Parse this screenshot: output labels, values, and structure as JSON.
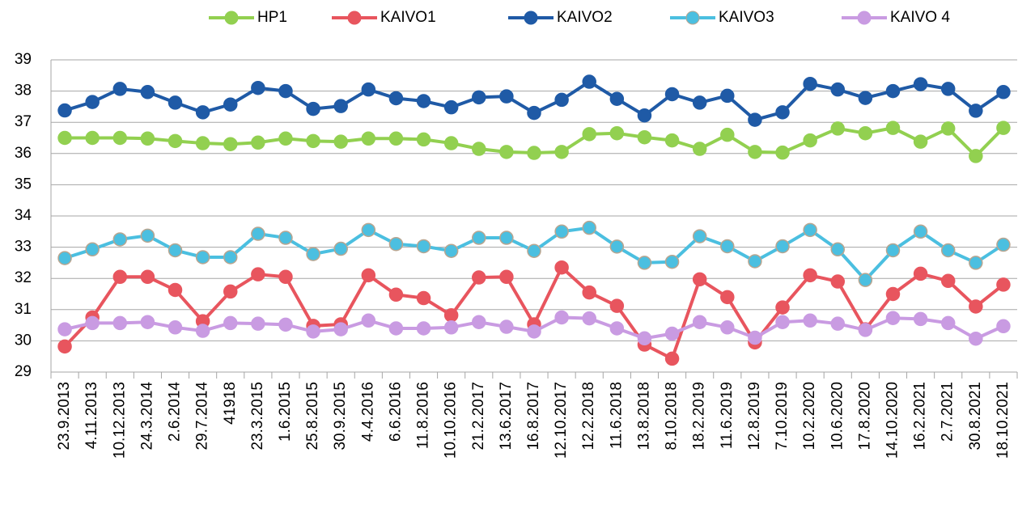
{
  "chart_data": {
    "type": "line",
    "categories": [
      "23.9.2013",
      "4.11.2013",
      "10.12.2013",
      "24.3.2014",
      "2.6.2014",
      "29.7.2014",
      "41918",
      "23.3.2015",
      "1.6.2015",
      "25.8.2015",
      "30.9.2015",
      "4.4.2016",
      "6.6.2016",
      "11.8.2016",
      "10.10.2016",
      "21.2.2017",
      "13.6.2017",
      "16.8.2017",
      "12.10.2017",
      "12.2.2018",
      "11.6.2018",
      "13.8.2018",
      "8.10.2018",
      "18.2.2019",
      "11.6.2019",
      "12.8.2019",
      "7.10.2019",
      "10.2.2020",
      "10.6.2020",
      "17.8.2020",
      "14.10.2020",
      "16.2.2021",
      "2.7.2021",
      "30.8.2021",
      "18.10.2021"
    ],
    "series": [
      {
        "name": "HP1",
        "color": "#92d050",
        "values": [
          36.5,
          36.5,
          36.5,
          36.48,
          36.4,
          36.33,
          36.3,
          36.35,
          36.48,
          36.4,
          36.38,
          36.48,
          36.48,
          36.45,
          36.33,
          36.15,
          36.05,
          36.02,
          36.05,
          36.62,
          36.65,
          36.52,
          36.42,
          36.15,
          36.6,
          36.05,
          36.03,
          36.42,
          36.8,
          36.65,
          36.82,
          36.38,
          36.8,
          35.92,
          36.82
        ]
      },
      {
        "name": "KAIVO1",
        "color": "#e8555e",
        "values": [
          29.82,
          30.75,
          32.05,
          32.05,
          31.63,
          30.63,
          31.58,
          32.13,
          32.05,
          30.48,
          30.53,
          32.1,
          31.48,
          31.37,
          30.82,
          32.03,
          32.05,
          30.53,
          32.35,
          31.55,
          31.12,
          29.88,
          29.43,
          31.97,
          31.4,
          29.95,
          31.07,
          32.1,
          31.9,
          30.37,
          31.5,
          32.15,
          31.92,
          31.1,
          31.8
        ]
      },
      {
        "name": "KAIVO2",
        "color": "#1f5aa6",
        "values": [
          37.38,
          37.65,
          38.07,
          37.97,
          37.63,
          37.32,
          37.57,
          38.1,
          38.0,
          37.43,
          37.52,
          38.05,
          37.77,
          37.68,
          37.48,
          37.8,
          37.83,
          37.3,
          37.72,
          38.3,
          37.75,
          37.22,
          37.9,
          37.63,
          37.85,
          37.08,
          37.32,
          38.23,
          38.05,
          37.78,
          38.0,
          38.22,
          38.07,
          37.37,
          37.97
        ]
      },
      {
        "name": "KAIVO3",
        "color": "#4bbfe0",
        "values": [
          32.65,
          32.93,
          33.25,
          33.37,
          32.9,
          32.68,
          32.68,
          33.43,
          33.3,
          32.78,
          32.95,
          33.55,
          33.1,
          33.03,
          32.88,
          33.3,
          33.3,
          32.88,
          33.5,
          33.62,
          33.02,
          32.5,
          32.53,
          33.35,
          33.03,
          32.55,
          33.03,
          33.55,
          32.93,
          31.95,
          32.9,
          33.5,
          32.9,
          32.5,
          33.08
        ]
      },
      {
        "name": "KAIVO 4",
        "color": "#c99be2",
        "values": [
          30.37,
          30.57,
          30.57,
          30.6,
          30.43,
          30.32,
          30.57,
          30.55,
          30.52,
          30.3,
          30.37,
          30.65,
          30.4,
          30.4,
          30.43,
          30.6,
          30.45,
          30.3,
          30.75,
          30.72,
          30.4,
          30.08,
          30.23,
          30.6,
          30.43,
          30.1,
          30.6,
          30.65,
          30.55,
          30.35,
          30.73,
          30.7,
          30.57,
          30.07,
          30.47
        ]
      }
    ],
    "ylim": [
      29,
      39
    ],
    "yticks": [
      29,
      30,
      31,
      32,
      33,
      34,
      35,
      36,
      37,
      38,
      39
    ],
    "grid": true,
    "legend": "top"
  }
}
